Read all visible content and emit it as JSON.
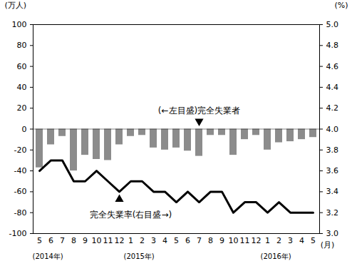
{
  "chart_data": {
    "type": "bar",
    "categories": [
      "5",
      "6",
      "7",
      "8",
      "9",
      "10",
      "11",
      "12",
      "1",
      "2",
      "3",
      "4",
      "5",
      "6",
      "7",
      "8",
      "9",
      "10",
      "11",
      "12",
      "1",
      "2",
      "3",
      "4",
      "5"
    ],
    "year_labels": [
      "(2014年)",
      "(2015年)",
      "(2016年)"
    ],
    "xlabel": "(月)",
    "ylabel": "(万人)",
    "y2label": "(%)",
    "series": [
      {
        "name": "完全失業者",
        "type": "bar",
        "color": "#8c8c8c",
        "values": [
          -37,
          -15,
          -7,
          -40,
          -25,
          -29,
          -30,
          -15,
          -7,
          -6,
          -18,
          -20,
          -18,
          -21,
          -26,
          -6,
          -6,
          -25,
          -10,
          -6,
          -20,
          -13,
          -12,
          -10,
          -8
        ]
      },
      {
        "name": "完全失業率",
        "type": "line",
        "axis": "y2",
        "color": "#000000",
        "values": [
          3.6,
          3.7,
          3.7,
          3.5,
          3.5,
          3.6,
          3.5,
          3.4,
          3.5,
          3.5,
          3.4,
          3.4,
          3.3,
          3.4,
          3.3,
          3.4,
          3.4,
          3.2,
          3.3,
          3.3,
          3.2,
          3.3,
          3.2,
          3.2,
          3.2
        ]
      }
    ],
    "annotations": [
      "(←左目盛)完全失業者",
      "完全失業率(右目盛→)"
    ],
    "ylim": [
      -100,
      100
    ],
    "yticks": [
      100,
      80,
      60,
      40,
      20,
      0,
      -20,
      -40,
      -60,
      -80,
      -100
    ],
    "y2lim": [
      3.0,
      5.0
    ],
    "y2ticks": [
      {
        "value": 5.0,
        "label": "5.0"
      },
      {
        "value": 4.8,
        "label": "4.8"
      },
      {
        "value": 4.6,
        "label": "4.6"
      },
      {
        "value": 4.4,
        "label": "4.4"
      },
      {
        "value": 4.2,
        "label": "4.2"
      },
      {
        "value": 4.0,
        "label": "4.0"
      },
      {
        "value": 3.8,
        "label": "3.8"
      },
      {
        "value": 3.6,
        "label": "3.6"
      },
      {
        "value": 3.4,
        "label": "3.4"
      },
      {
        "value": 3.2,
        "label": "3.2"
      },
      {
        "value": 3.0,
        "label": "3.0"
      }
    ],
    "grid": false
  }
}
